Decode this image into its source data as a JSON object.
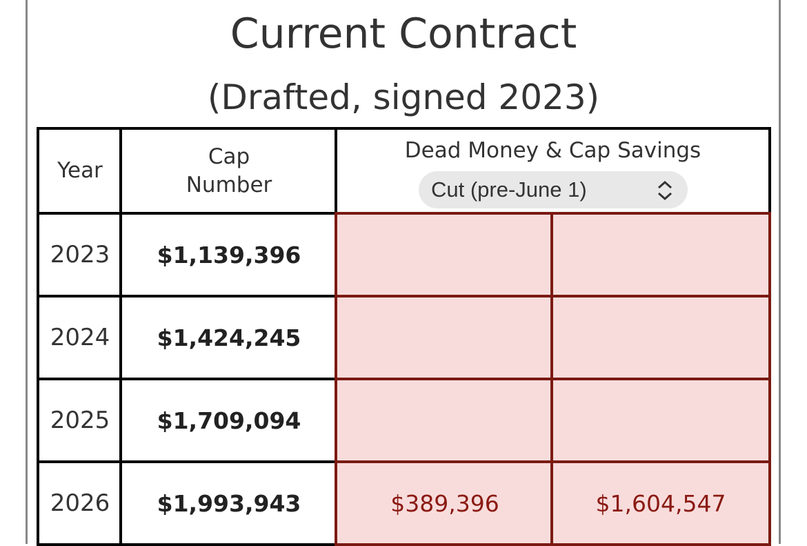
{
  "header": {
    "title": "Current Contract",
    "subtitle": "(Drafted, signed 2023)"
  },
  "table": {
    "columns": [
      "Year",
      "Cap Number",
      "Dead Money & Cap Savings"
    ],
    "select": "Cut (pre-June 1)",
    "rows": [
      [
        "2023",
        "$1,139,396"
      ],
      [
        "2024",
        "$1,424,245"
      ],
      [
        "2025",
        "$1,709,094"
      ],
      [
        "2026",
        "$1,993,943",
        "$389,396",
        "$1,604,547"
      ]
    ]
  }
}
